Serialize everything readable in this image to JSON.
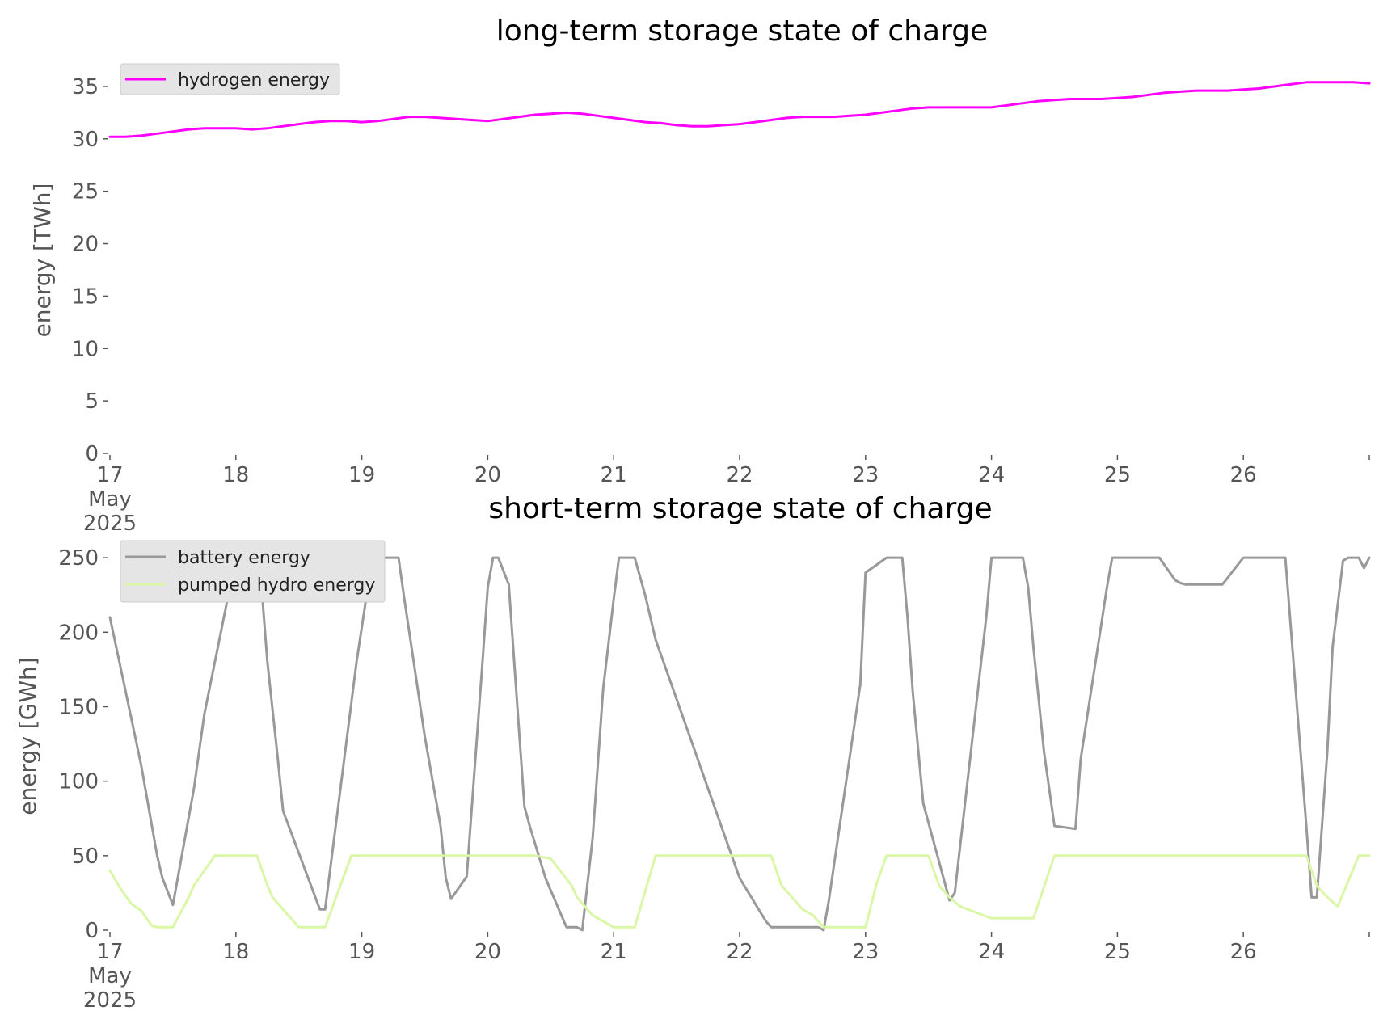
{
  "chart_data": [
    {
      "type": "line",
      "title": "long-term storage state of charge",
      "xlabel": "",
      "ylabel": "energy [TWh]",
      "xlim": [
        0,
        240
      ],
      "ylim": [
        0,
        37
      ],
      "yticks": [
        0,
        5,
        10,
        15,
        20,
        25,
        30,
        35
      ],
      "xtick_positions": [
        0,
        24,
        48,
        72,
        96,
        120,
        144,
        168,
        192,
        216
      ],
      "xtick_labels": [
        "17\nMay\n2025",
        "18",
        "19",
        "20",
        "21",
        "22",
        "23",
        "24",
        "25",
        "26"
      ],
      "grid": false,
      "legend": "top-left",
      "series": [
        {
          "name": "hydrogen energy",
          "color": "#ff00ff",
          "x": [
            0,
            3,
            6,
            9,
            12,
            15,
            18,
            21,
            24,
            27,
            30,
            33,
            36,
            39,
            42,
            45,
            48,
            51,
            54,
            57,
            60,
            63,
            66,
            69,
            72,
            75,
            78,
            81,
            84,
            87,
            90,
            93,
            96,
            99,
            102,
            105,
            108,
            111,
            114,
            117,
            120,
            123,
            126,
            129,
            132,
            135,
            138,
            141,
            144,
            147,
            150,
            153,
            156,
            159,
            162,
            165,
            168,
            171,
            174,
            177,
            180,
            183,
            186,
            189,
            192,
            195,
            198,
            201,
            204,
            207,
            210,
            213,
            216,
            219,
            222,
            225,
            228,
            231,
            234,
            237,
            240
          ],
          "values": [
            30.2,
            30.2,
            30.3,
            30.5,
            30.7,
            30.9,
            31.0,
            31.0,
            31.0,
            30.9,
            31.0,
            31.2,
            31.4,
            31.6,
            31.7,
            31.7,
            31.6,
            31.7,
            31.9,
            32.1,
            32.1,
            32.0,
            31.9,
            31.8,
            31.7,
            31.9,
            32.1,
            32.3,
            32.4,
            32.5,
            32.4,
            32.2,
            32.0,
            31.8,
            31.6,
            31.5,
            31.3,
            31.2,
            31.2,
            31.3,
            31.4,
            31.6,
            31.8,
            32.0,
            32.1,
            32.1,
            32.1,
            32.2,
            32.3,
            32.5,
            32.7,
            32.9,
            33.0,
            33.0,
            33.0,
            33.0,
            33.0,
            33.2,
            33.4,
            33.6,
            33.7,
            33.8,
            33.8,
            33.8,
            33.9,
            34.0,
            34.2,
            34.4,
            34.5,
            34.6,
            34.6,
            34.6,
            34.7,
            34.8,
            35.0,
            35.2,
            35.4,
            35.4,
            35.4,
            35.4,
            35.3
          ]
        }
      ]
    },
    {
      "type": "line",
      "title": "short-term storage state of charge",
      "xlabel": "",
      "ylabel": "energy [GWh]",
      "xlim": [
        0,
        240
      ],
      "ylim": [
        0,
        262
      ],
      "yticks": [
        0,
        50,
        100,
        150,
        200,
        250
      ],
      "xtick_positions": [
        0,
        24,
        48,
        72,
        96,
        120,
        144,
        168,
        192,
        216
      ],
      "xtick_labels": [
        "17\nMay\n2025",
        "18",
        "19",
        "20",
        "21",
        "22",
        "23",
        "24",
        "25",
        "26"
      ],
      "grid": false,
      "legend": "top-left",
      "series": [
        {
          "name": "battery energy",
          "color": "#999999",
          "x": [
            0,
            3,
            6,
            8,
            9,
            10,
            12,
            16,
            18,
            24,
            26,
            29,
            30,
            32,
            33,
            40,
            41,
            47,
            50,
            54,
            55,
            56,
            60,
            63,
            64,
            65,
            68,
            71,
            72,
            73,
            74,
            76,
            77,
            78,
            79,
            80,
            83,
            87,
            89,
            90,
            92,
            94,
            96,
            97,
            98,
            100,
            102,
            104,
            106,
            107,
            108,
            110,
            112,
            114,
            115,
            116,
            117,
            118,
            119,
            120,
            125,
            126,
            126.5,
            131,
            135,
            136,
            137,
            143,
            144,
            148,
            150,
            151,
            152,
            153,
            155,
            160,
            161,
            167,
            168,
            170,
            172,
            173,
            174,
            175,
            176,
            177,
            178,
            180,
            184,
            185,
            190,
            191,
            192,
            193,
            194,
            195,
            197,
            200,
            202,
            203,
            204,
            205,
            212,
            216,
            219,
            221,
            222,
            224,
            228,
            229,
            230,
            232,
            233,
            235,
            236,
            237,
            238,
            239,
            240
          ],
          "values": [
            210,
            160,
            110,
            70,
            50,
            35,
            17,
            95,
            145,
            250,
            250,
            225,
            180,
            115,
            80,
            14,
            14,
            180,
            250,
            250,
            250,
            225,
            130,
            70,
            35,
            21,
            36,
            180,
            230,
            250,
            250,
            232,
            182,
            132,
            83,
            70,
            35,
            2,
            2,
            0,
            62,
            162,
            222,
            250,
            250,
            250,
            225,
            195,
            175,
            165,
            155,
            135,
            115,
            95,
            85,
            75,
            65,
            55,
            45,
            35,
            6,
            2,
            2,
            2,
            2,
            0,
            20,
            165,
            240,
            250,
            250,
            250,
            210,
            160,
            85,
            20,
            25,
            210,
            250,
            250,
            250,
            250,
            250,
            230,
            190,
            155,
            120,
            70,
            68,
            115,
            230,
            250,
            250,
            250,
            250,
            250,
            250,
            250,
            240,
            235,
            233,
            232,
            232,
            250,
            250,
            250,
            250,
            250,
            70,
            22,
            22,
            120,
            190,
            248,
            250,
            250,
            250,
            243,
            250
          ],
          "note_x_is_hours": true
        },
        {
          "name": "pumped hydro energy",
          "color": "#d9f7a6",
          "x": [
            0,
            2,
            4,
            6,
            7,
            8,
            9,
            10,
            12,
            15,
            16,
            20,
            24,
            26,
            28,
            30,
            31,
            33,
            34,
            36,
            40,
            41,
            46,
            48,
            52,
            56,
            60,
            64,
            68,
            72,
            74,
            76,
            78,
            80,
            81,
            84,
            88,
            89,
            92,
            96,
            100,
            104,
            108,
            112,
            116,
            120,
            122,
            124,
            126,
            128,
            130,
            132,
            134,
            136,
            140,
            143,
            144,
            146,
            148,
            150,
            152,
            154,
            156,
            158,
            160,
            162,
            168,
            172,
            176,
            180,
            184,
            188,
            192,
            196,
            200,
            204,
            208,
            212,
            216,
            218,
            220,
            222,
            224,
            226,
            228,
            230,
            232,
            234,
            238,
            240
          ],
          "values": [
            40,
            28,
            18,
            13,
            8,
            3,
            2,
            2,
            2,
            22,
            30,
            50,
            50,
            50,
            50,
            30,
            22,
            14,
            10,
            2,
            2,
            2,
            50,
            50,
            50,
            50,
            50,
            50,
            50,
            50,
            50,
            50,
            50,
            50,
            50,
            48,
            30,
            22,
            10,
            2,
            2,
            50,
            50,
            50,
            50,
            50,
            50,
            50,
            50,
            30,
            22,
            14,
            10,
            2,
            2,
            2,
            2,
            30,
            50,
            50,
            50,
            50,
            50,
            30,
            22,
            16,
            8,
            8,
            8,
            50,
            50,
            50,
            50,
            50,
            50,
            50,
            50,
            50,
            50,
            50,
            50,
            50,
            50,
            50,
            50,
            30,
            22,
            16,
            50,
            50
          ]
        }
      ]
    }
  ],
  "titles": {
    "top": "long-term storage state of charge",
    "bottom": "short-term storage state of charge"
  },
  "axes": {
    "top_ylabel": "energy [TWh]",
    "bottom_ylabel": "energy [GWh]",
    "xtick_main": [
      "17",
      "May",
      "2025"
    ]
  },
  "legend": {
    "top": [
      "hydrogen energy"
    ],
    "bottom": [
      "battery energy",
      "pumped hydro energy"
    ]
  }
}
